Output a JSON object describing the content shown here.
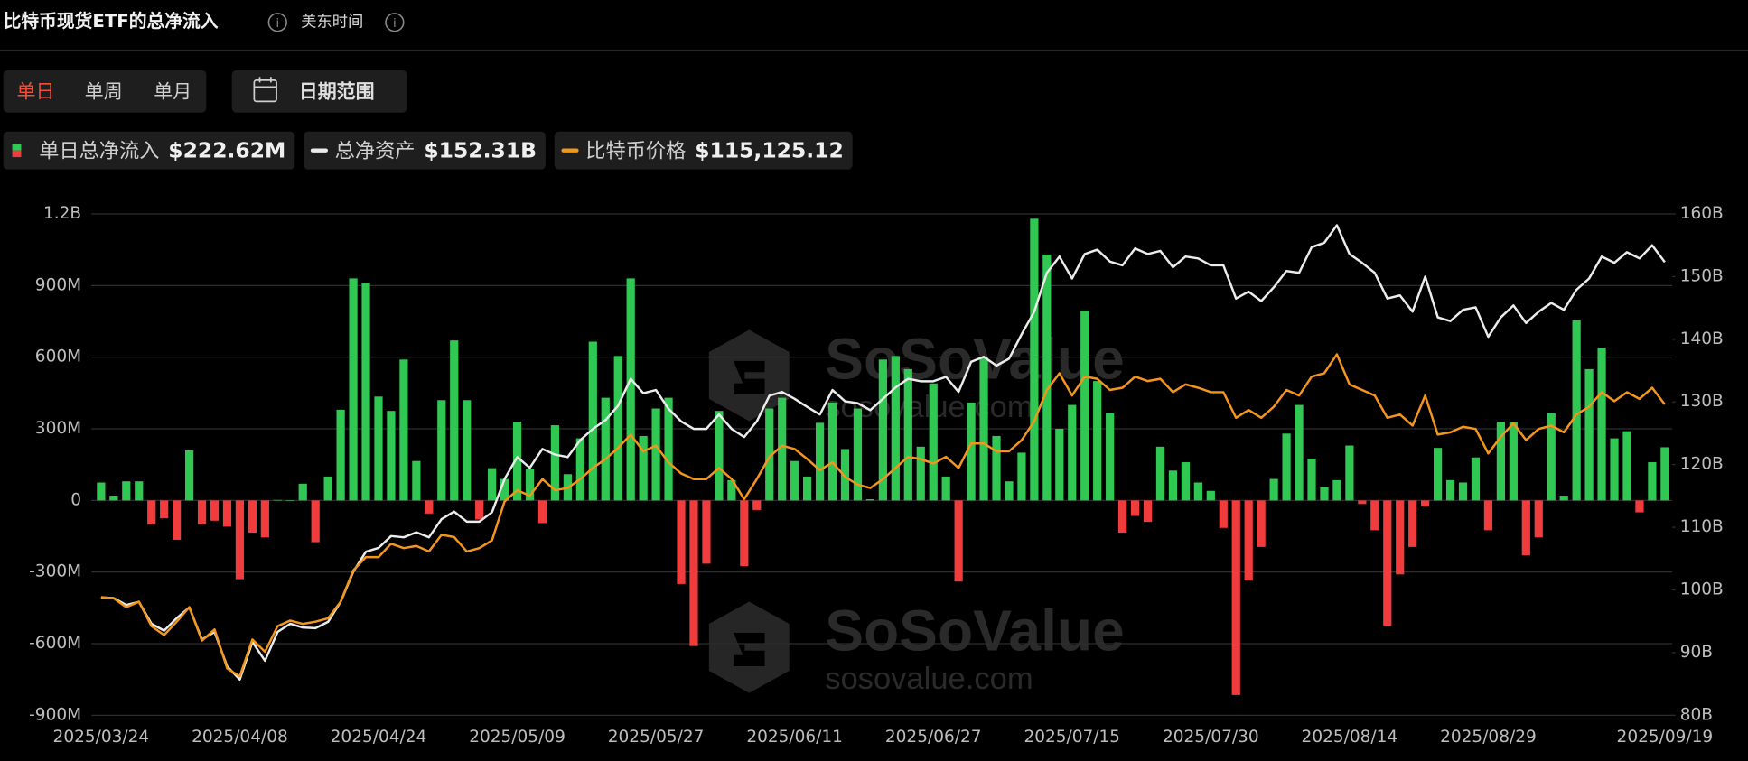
{
  "header": {
    "title": "比特币现货ETF的总净流入",
    "timezone": "美东时间"
  },
  "controls": {
    "periods": [
      "单日",
      "单周",
      "单月"
    ],
    "date_range": "日期范围"
  },
  "watermark": {
    "brand": "SoSoValue",
    "site": "sosovalue.com"
  },
  "chart_data": {
    "type": "bar",
    "categories": [
      "2025/03/24",
      null,
      null,
      null,
      null,
      null,
      null,
      null,
      null,
      null,
      null,
      "2025/04/08",
      null,
      null,
      null,
      null,
      null,
      null,
      null,
      null,
      null,
      null,
      "2025/04/24",
      null,
      null,
      null,
      null,
      null,
      null,
      null,
      null,
      null,
      null,
      "2025/05/09",
      null,
      null,
      null,
      null,
      null,
      null,
      null,
      null,
      null,
      null,
      "2025/05/27",
      null,
      null,
      null,
      null,
      null,
      null,
      null,
      null,
      null,
      null,
      "2025/06/11",
      null,
      null,
      null,
      null,
      null,
      null,
      null,
      null,
      null,
      null,
      "2025/06/27",
      null,
      null,
      null,
      null,
      null,
      null,
      null,
      null,
      null,
      null,
      "2025/07/15",
      null,
      null,
      null,
      null,
      null,
      null,
      null,
      null,
      null,
      null,
      "2025/07/30",
      null,
      null,
      null,
      null,
      null,
      null,
      null,
      null,
      null,
      null,
      "2025/08/14",
      null,
      null,
      null,
      null,
      null,
      null,
      null,
      null,
      null,
      null,
      "2025/08/29",
      null,
      null,
      null,
      null,
      null,
      null,
      null,
      null,
      null,
      null,
      null,
      null,
      null,
      "2025/09/19"
    ],
    "series": [
      {
        "name": "单日总净流入",
        "latest": "$222.62M",
        "type": "bar",
        "colors": {
          "positive": "#30c853",
          "negative": "#f03c3c"
        },
        "values": [
          75,
          20,
          80,
          80,
          -100,
          -75,
          -165,
          210,
          -100,
          -85,
          -110,
          -330,
          -135,
          -155,
          2,
          1,
          70,
          -175,
          100,
          380,
          930,
          910,
          435,
          375,
          590,
          165,
          -55,
          420,
          670,
          420,
          -80,
          135,
          90,
          330,
          130,
          -95,
          315,
          110,
          260,
          665,
          430,
          605,
          930,
          270,
          385,
          430,
          -350,
          -610,
          -265,
          375,
          85,
          -275,
          -40,
          385,
          430,
          165,
          100,
          325,
          410,
          215,
          385,
          5,
          590,
          605,
          550,
          225,
          490,
          100,
          -340,
          410,
          600,
          270,
          80,
          200,
          1180,
          1030,
          300,
          400,
          795,
          500,
          365,
          -135,
          -65,
          -90,
          225,
          125,
          160,
          75,
          40,
          -115,
          -815,
          -335,
          -195,
          90,
          280,
          400,
          175,
          55,
          85,
          230,
          -15,
          -125,
          -525,
          -310,
          -195,
          -25,
          220,
          85,
          75,
          180,
          -125,
          330,
          330,
          -230,
          -155,
          365,
          20,
          755,
          550,
          640,
          260,
          290,
          -50,
          160,
          222.62
        ]
      },
      {
        "name": "总净资产",
        "latest": "$152.31B",
        "type": "line",
        "axis": "y2",
        "color": "#ececec",
        "values": [
          98.8,
          98.7,
          97.6,
          98.1,
          94.6,
          93.5,
          95.5,
          97.2,
          92.1,
          93.3,
          87.8,
          85.7,
          91.7,
          88.7,
          93.3,
          94.6,
          94,
          93.9,
          94.9,
          98.1,
          102.9,
          106.1,
          106.7,
          108.6,
          108.4,
          109.2,
          108.4,
          111.3,
          112.5,
          110.9,
          110.9,
          112.4,
          117.7,
          121.2,
          119.5,
          122.5,
          121.6,
          121.2,
          123.9,
          125.7,
          127.1,
          129.4,
          133.7,
          131.4,
          131.9,
          128.9,
          126.9,
          125.7,
          125.7,
          128,
          125.7,
          124.4,
          126.9,
          131,
          131.6,
          130.5,
          129.2,
          128,
          131.9,
          130.1,
          129.8,
          128.7,
          130.5,
          132.3,
          133.7,
          133.3,
          133.3,
          134,
          131.6,
          136.4,
          137.2,
          135.8,
          136.9,
          140.8,
          144.4,
          150.6,
          153.2,
          149.7,
          153.6,
          154.3,
          152.4,
          151.8,
          154.5,
          153.6,
          154.1,
          151.5,
          153.2,
          152.9,
          151.8,
          151.8,
          146.5,
          147.6,
          146.1,
          148.3,
          150.9,
          150.6,
          154.7,
          155.4,
          158.2,
          153.6,
          152.2,
          150.6,
          146.5,
          147,
          144.4,
          150,
          143.5,
          142.9,
          144.7,
          145.1,
          140.4,
          143.5,
          145.4,
          142.6,
          144.4,
          145.8,
          144.7,
          147.9,
          149.7,
          153.2,
          152.2,
          153.9,
          152.9,
          155,
          152.31
        ]
      },
      {
        "name": "比特币价格",
        "latest": "$115,125.12",
        "type": "line",
        "axis": "y3",
        "color": "#f4961e",
        "values": [
          87722,
          87564,
          86297,
          87089,
          83604,
          82337,
          84237,
          86297,
          81544,
          83128,
          77584,
          76475,
          81702,
          79960,
          83604,
          84395,
          83920,
          84237,
          84712,
          87089,
          91524,
          93424,
          93424,
          95325,
          94692,
          95008,
          94216,
          96592,
          96275,
          94216,
          94692,
          95800,
          101344,
          102928,
          102136,
          104512,
          102928,
          103244,
          104512,
          106096,
          107360,
          108947,
          110848,
          108472,
          109264,
          106888,
          105304,
          104512,
          104512,
          106096,
          104512,
          101661,
          104512,
          107680,
          109264,
          108790,
          107360,
          105779,
          106888,
          104829,
          103720,
          103244,
          104512,
          106096,
          107680,
          107360,
          106730,
          107680,
          106096,
          109580,
          109580,
          108472,
          108472,
          110056,
          112751,
          117184,
          119560,
          116392,
          119085,
          118768,
          117184,
          117501,
          119085,
          118451,
          118768,
          116868,
          117976,
          117501,
          116868,
          116868,
          113224,
          114333,
          113224,
          114808,
          117184,
          116392,
          119085,
          119560,
          122252,
          117976,
          117184,
          116392,
          113224,
          113699,
          112115,
          116392,
          110848,
          111165,
          111952,
          111640,
          108157,
          110531,
          112432,
          110056,
          111640,
          112115,
          111165,
          113699,
          114808,
          116868,
          115600,
          116868,
          115917,
          117501,
          115125.12
        ]
      }
    ],
    "ylim": [
      -900,
      1200
    ],
    "yticks": [
      {
        "value": -900,
        "label": "-900M"
      },
      {
        "value": -600,
        "label": "-600M"
      },
      {
        "value": -300,
        "label": "-300M"
      },
      0,
      {
        "value": 300,
        "label": "300M"
      },
      {
        "value": 600,
        "label": "600M"
      },
      {
        "value": 900,
        "label": "900M"
      },
      {
        "value": 1200,
        "label": "1.2B"
      }
    ],
    "y2lim": [
      80,
      160
    ],
    "y2ticks": [
      {
        "value": 80,
        "label": "80B"
      },
      {
        "value": 90,
        "label": "90B"
      },
      {
        "value": 100,
        "label": "100B"
      },
      {
        "value": 110,
        "label": "110B"
      },
      {
        "value": 120,
        "label": "120B"
      },
      {
        "value": 130,
        "label": "130B"
      },
      {
        "value": 140,
        "label": "140B"
      },
      {
        "value": 150,
        "label": "150B"
      },
      {
        "value": 160,
        "label": "160B"
      }
    ],
    "y3lim": [
      70931,
      142211
    ],
    "grid": true
  }
}
